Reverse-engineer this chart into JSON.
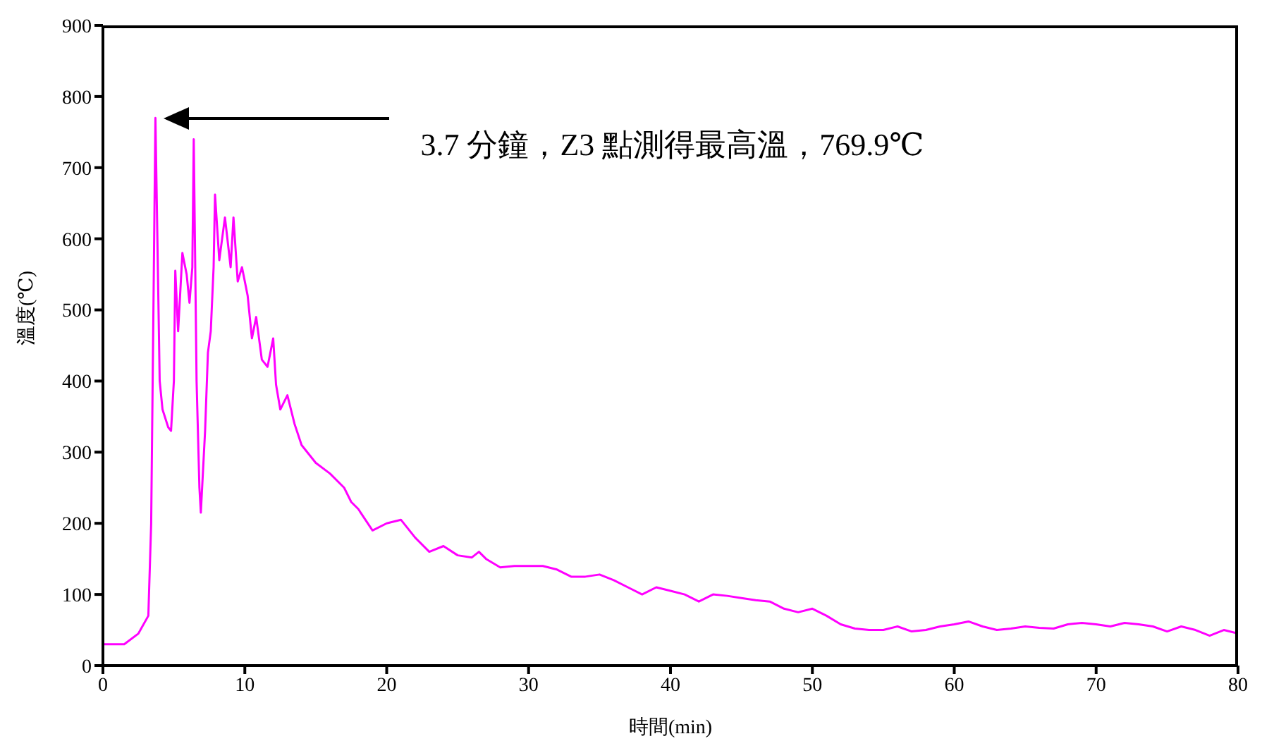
{
  "chart_data": {
    "type": "line",
    "xlabel": "時間(min)",
    "ylabel": "溫度(℃)",
    "xlim": [
      0,
      80
    ],
    "xticks": [
      0,
      10,
      20,
      30,
      40,
      50,
      60,
      70,
      80
    ],
    "ylim": [
      0,
      900
    ],
    "yticks": [
      0,
      100,
      200,
      300,
      400,
      500,
      600,
      700,
      800,
      900
    ],
    "grid": false,
    "marker": "none",
    "annotations": [
      "3.7 分鐘，Z3 點測得最高溫，769.9℃"
    ],
    "series": [
      {
        "color": "#ff00ff",
        "x": [
          0,
          1.5,
          2.5,
          3.2,
          3.4,
          3.7,
          4.0,
          4.2,
          4.6,
          4.8,
          5.0,
          5.1,
          5.3,
          5.6,
          5.9,
          6.1,
          6.3,
          6.4,
          6.6,
          6.8,
          6.9,
          7.2,
          7.4,
          7.6,
          7.8,
          7.9,
          8.2,
          8.4,
          8.6,
          9.0,
          9.2,
          9.5,
          9.8,
          10.2,
          10.5,
          10.8,
          11.2,
          11.6,
          12.0,
          12.2,
          12.5,
          13,
          13.5,
          14,
          15,
          16,
          17,
          17.5,
          18,
          19,
          20,
          21,
          22,
          23,
          24,
          25,
          26,
          26.5,
          27,
          28,
          29,
          30,
          31,
          32,
          33,
          34,
          35,
          36,
          37,
          38,
          39,
          40,
          41,
          42,
          43,
          44,
          45,
          46,
          47,
          48,
          49,
          50,
          51,
          52,
          53,
          54,
          55,
          56,
          57,
          58,
          59,
          60,
          61,
          62,
          63,
          64,
          65,
          66,
          67,
          68,
          69,
          70,
          71,
          72,
          73,
          74,
          75,
          76,
          77,
          78,
          79,
          80
        ],
        "values": [
          30,
          30,
          45,
          70,
          200,
          769.9,
          400,
          360,
          335,
          330,
          400,
          555,
          470,
          580,
          550,
          510,
          560,
          740,
          400,
          250,
          215,
          330,
          440,
          470,
          560,
          662,
          570,
          600,
          630,
          560,
          630,
          540,
          560,
          520,
          460,
          490,
          430,
          420,
          460,
          395,
          360,
          380,
          340,
          310,
          285,
          270,
          250,
          230,
          220,
          190,
          200,
          205,
          180,
          160,
          168,
          155,
          152,
          160,
          150,
          138,
          140,
          140,
          140,
          135,
          125,
          125,
          128,
          120,
          110,
          100,
          110,
          105,
          100,
          90,
          100,
          98,
          95,
          92,
          90,
          80,
          75,
          80,
          70,
          58,
          52,
          50,
          50,
          55,
          48,
          50,
          55,
          58,
          62,
          55,
          50,
          52,
          55,
          53,
          52,
          58,
          60,
          58,
          55,
          60,
          58,
          55,
          48,
          55,
          50,
          42,
          50,
          45
        ]
      }
    ]
  }
}
